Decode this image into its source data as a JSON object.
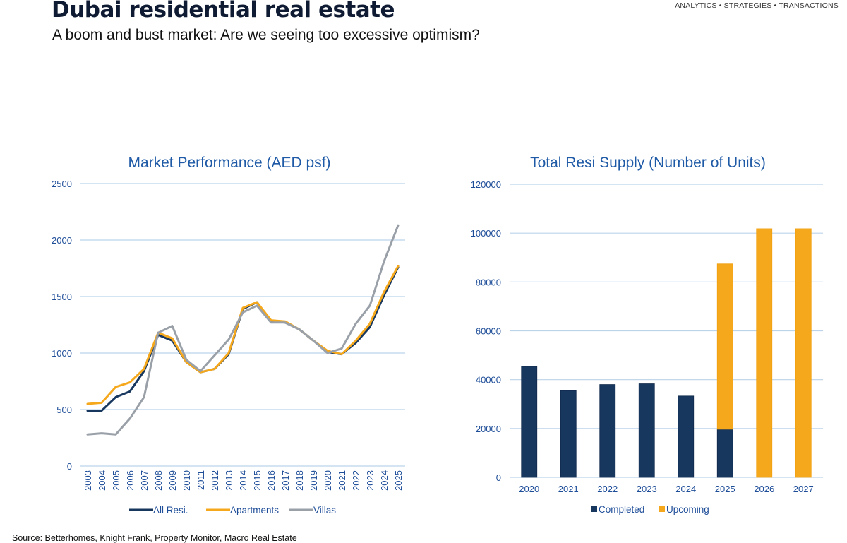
{
  "header": {
    "title": "Dubai residential real estate",
    "subtitle": "A boom and bust market: Are we seeing too excessive optimism?",
    "tagline": "ANALYTICS • STRATEGIES • TRANSACTIONS"
  },
  "footer": {
    "source": "Source: Betterhomes, Knight Frank, Property Monitor, Macro Real Estate"
  },
  "colors": {
    "navy": "#17375e",
    "orange": "#f5a81c",
    "gray": "#9aa0a8",
    "grid": "#bcd3ea",
    "axis_text": "#1f4e99",
    "chart_title": "#1f5aa6"
  },
  "chart_data": [
    {
      "type": "line",
      "title": "Market Performance (AED psf)",
      "xlabel": "",
      "ylabel": "",
      "ylim": [
        0,
        2500
      ],
      "yticks": [
        0,
        500,
        1000,
        1500,
        2000,
        2500
      ],
      "grid": true,
      "legend": "bottom",
      "x": [
        "2003",
        "2004",
        "2005",
        "2006",
        "2007",
        "2008",
        "2009",
        "2010",
        "2011",
        "2012",
        "2013",
        "2014",
        "2015",
        "2016",
        "2017",
        "2018",
        "2019",
        "2020",
        "2021",
        "2022",
        "2023",
        "2024",
        "2025"
      ],
      "series": [
        {
          "name": "All Resi.",
          "color": "#17375e",
          "values": [
            490,
            490,
            610,
            660,
            840,
            1160,
            1110,
            920,
            830,
            860,
            990,
            1390,
            1450,
            1280,
            1270,
            1210,
            1110,
            1010,
            990,
            1090,
            1230,
            1510,
            1760
          ]
        },
        {
          "name": "Apartments",
          "color": "#f5a81c",
          "values": [
            550,
            560,
            700,
            740,
            860,
            1180,
            1130,
            920,
            830,
            860,
            1000,
            1400,
            1450,
            1290,
            1280,
            1210,
            1110,
            1020,
            990,
            1110,
            1260,
            1540,
            1770
          ]
        },
        {
          "name": "Villas",
          "color": "#9aa0a8",
          "values": [
            280,
            290,
            280,
            420,
            610,
            1180,
            1240,
            940,
            840,
            980,
            1120,
            1360,
            1420,
            1270,
            1270,
            1210,
            1110,
            1000,
            1040,
            1260,
            1420,
            1810,
            2130
          ]
        }
      ]
    },
    {
      "type": "bar",
      "stacked": true,
      "title": "Total Resi Supply (Number of Units)",
      "xlabel": "",
      "ylabel": "",
      "ylim": [
        0,
        120000
      ],
      "yticks": [
        0,
        20000,
        40000,
        60000,
        80000,
        100000,
        120000
      ],
      "grid": true,
      "legend": "bottom",
      "categories": [
        "2020",
        "2021",
        "2022",
        "2023",
        "2024",
        "2025",
        "2026",
        "2027"
      ],
      "series": [
        {
          "name": "Completed",
          "color": "#17375e",
          "values": [
            45400,
            35500,
            38000,
            38300,
            33300,
            19700,
            0,
            0
          ]
        },
        {
          "name": "Upcoming",
          "color": "#f5a81c",
          "values": [
            0,
            0,
            0,
            0,
            0,
            67700,
            101800,
            101800
          ]
        }
      ]
    }
  ]
}
